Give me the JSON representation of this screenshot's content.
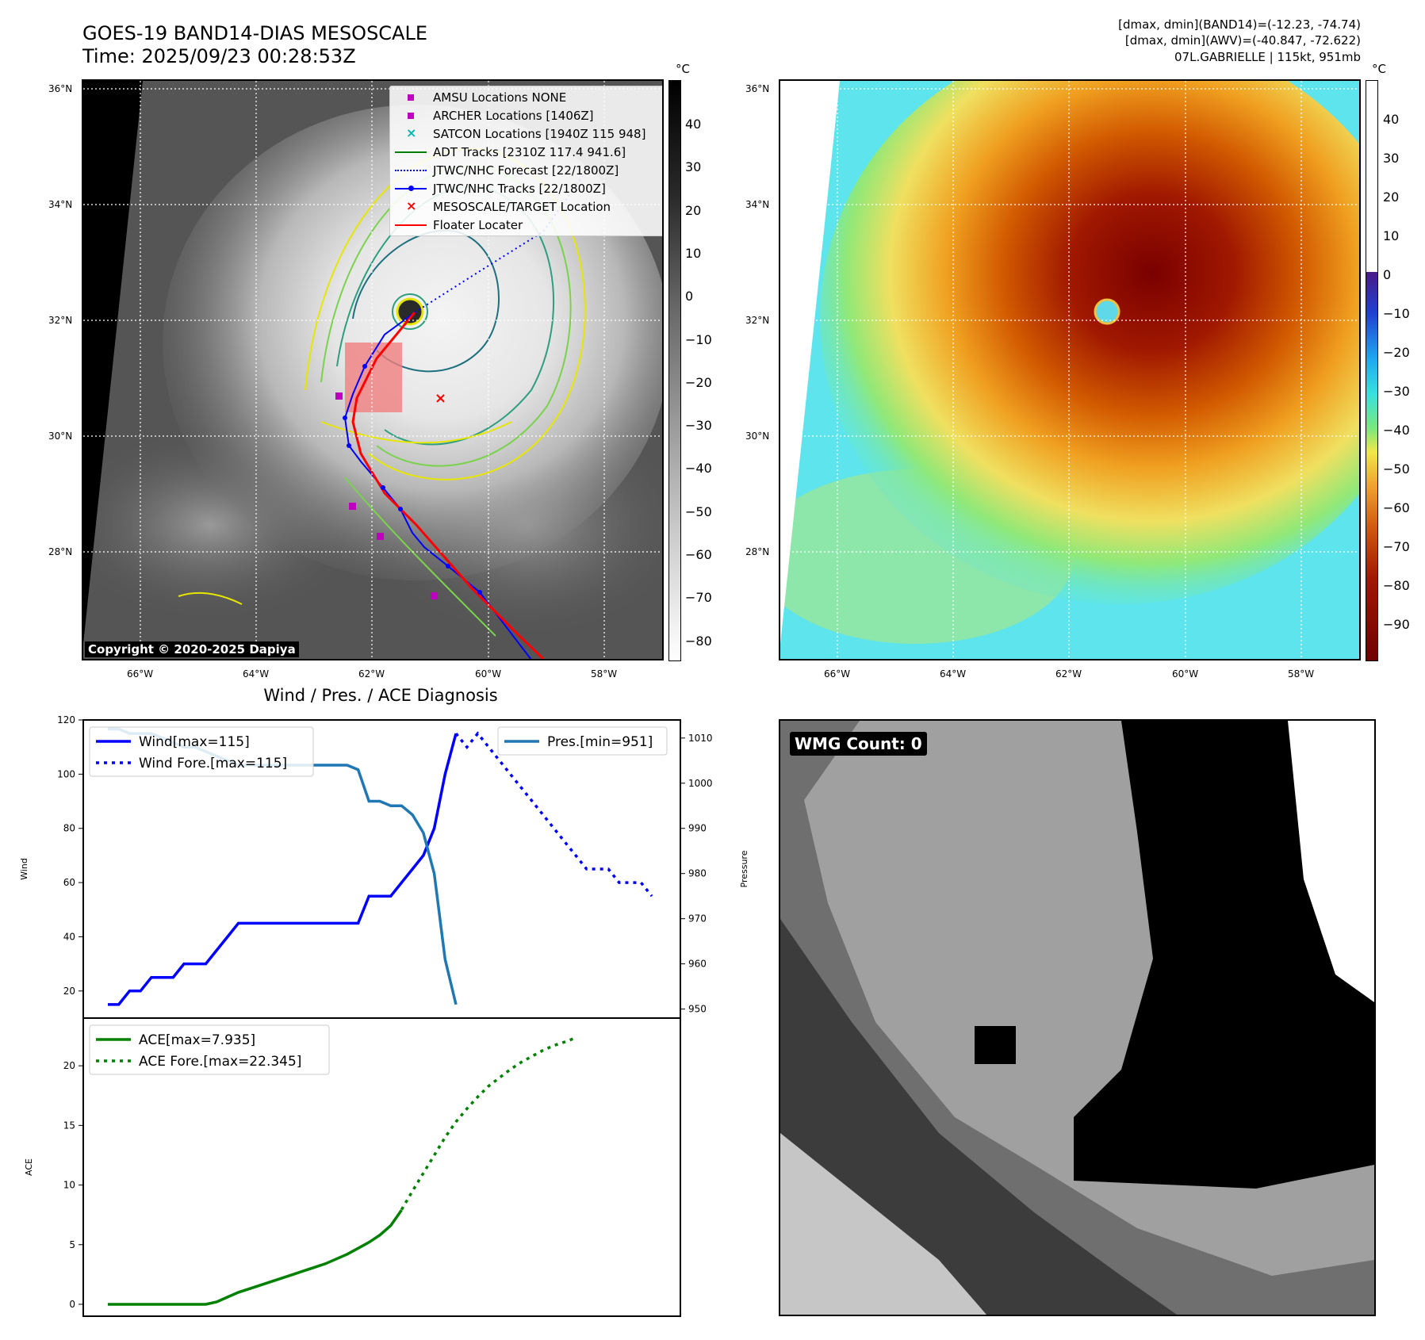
{
  "header": {
    "title_line1": "GOES-19 BAND14-DIAS MESOSCALE",
    "title_line2": "Time: 2025/09/23 00:28:53Z",
    "info_line1": "[dmax, dmin](BAND14)=(-12.23, -74.74)",
    "info_line2": "[dmax, dmin](AWV)=(-40.847, -72.622)",
    "info_line3": "07L.GABRIELLE | 115kt, 951mb"
  },
  "map": {
    "lat_labels": [
      "36°N",
      "34°N",
      "32°N",
      "30°N",
      "28°N"
    ],
    "lon_labels": [
      "66°W",
      "64°W",
      "62°W",
      "60°W",
      "58°W"
    ],
    "copyright": "Copyright © 2020-2025 Dapiya",
    "colorbar_unit": "°C",
    "ir_colorbar_ticks": [
      "40",
      "30",
      "20",
      "10",
      "0",
      "−10",
      "−20",
      "−30",
      "−40",
      "−50",
      "−60",
      "−70",
      "−80"
    ],
    "color_colorbar_ticks": [
      "40",
      "30",
      "20",
      "10",
      "0",
      "−10",
      "−20",
      "−30",
      "−40",
      "−50",
      "−60",
      "−70",
      "−80",
      "−90"
    ],
    "legend": [
      {
        "label": "AMSU Locations NONE",
        "color": "#c000c0",
        "kind": "square"
      },
      {
        "label": "ARCHER Locations [1406Z]",
        "color": "#c000c0",
        "kind": "square"
      },
      {
        "label": "SATCON Locations [1940Z 115 948]",
        "color": "#00b5b5",
        "kind": "cross"
      },
      {
        "label": "ADT Tracks [2310Z 117.4 941.6]",
        "color": "#008000",
        "kind": "line"
      },
      {
        "label": "JTWC/NHC Forecast [22/1800Z]",
        "color": "#0000ff",
        "kind": "dotted"
      },
      {
        "label": "JTWC/NHC Tracks [22/1800Z]",
        "color": "#0000ff",
        "kind": "linedot"
      },
      {
        "label": "MESOSCALE/TARGET Location",
        "color": "#ff0000",
        "kind": "x"
      },
      {
        "label": "Floater Locater",
        "color": "#ff0000",
        "kind": "line"
      }
    ]
  },
  "diagnosis": {
    "title": "Wind / Pres. / ACE Diagnosis",
    "wind_ylabel": "Wind",
    "pres_ylabel": "Pressure",
    "ace_ylabel": "ACE",
    "legend_wind": "Wind[max=115]",
    "legend_wind_fore": "Wind Fore.[max=115]",
    "legend_pres": "Pres.[min=951]",
    "legend_ace": "ACE[max=7.935]",
    "legend_ace_fore": "ACE Fore.[max=22.345]"
  },
  "wmg": {
    "label": "WMG Count: 0"
  },
  "chart_data": [
    {
      "type": "line",
      "title": "Wind / Pres. / ACE Diagnosis",
      "ylabel": "Wind",
      "ylim": [
        10,
        120
      ],
      "y_ticks": [
        20,
        40,
        60,
        80,
        100,
        120
      ],
      "x": [
        0,
        1,
        2,
        3,
        4,
        5,
        6,
        7,
        8,
        9,
        10,
        11,
        12,
        13,
        14,
        15,
        16,
        17,
        18,
        19,
        20,
        21,
        22,
        23,
        24,
        25,
        26,
        27,
        28,
        29,
        30,
        31,
        32,
        33,
        34,
        35,
        36,
        37,
        38,
        39,
        40,
        41,
        42,
        43,
        44,
        45,
        46,
        47,
        48,
        49,
        50
      ],
      "series": [
        {
          "name": "Wind[max=115]",
          "color": "#0000ff",
          "style": "solid",
          "values": [
            15,
            15,
            20,
            20,
            25,
            25,
            25,
            30,
            30,
            30,
            35,
            40,
            45,
            45,
            45,
            45,
            45,
            45,
            45,
            45,
            45,
            45,
            45,
            45,
            55,
            55,
            55,
            60,
            65,
            70,
            80,
            100,
            115,
            null,
            null,
            null,
            null,
            null,
            null,
            null,
            null,
            null,
            null,
            null,
            null,
            null,
            null,
            null,
            null,
            null,
            null
          ]
        },
        {
          "name": "Wind Fore.[max=115]",
          "color": "#0000ff",
          "style": "dotted",
          "values": [
            null,
            null,
            null,
            null,
            null,
            null,
            null,
            null,
            null,
            null,
            null,
            null,
            null,
            null,
            null,
            null,
            null,
            null,
            null,
            null,
            null,
            null,
            null,
            null,
            null,
            null,
            null,
            null,
            null,
            null,
            null,
            null,
            115,
            110,
            115,
            110,
            105,
            100,
            95,
            90,
            85,
            80,
            75,
            70,
            65,
            65,
            65,
            60,
            60,
            60,
            55
          ]
        }
      ]
    },
    {
      "type": "line",
      "ylabel": "Pressure",
      "ylim": [
        948,
        1014
      ],
      "y_ticks": [
        950,
        960,
        970,
        980,
        990,
        1000,
        1010
      ],
      "series": [
        {
          "name": "Pres.[min=951]",
          "color": "#1f77b4",
          "style": "solid",
          "values": [
            1012,
            1012,
            1011,
            1011,
            1011,
            1010,
            1009,
            1008,
            1008,
            1007,
            1006,
            1005,
            1004,
            1004,
            1004,
            1004,
            1004,
            1004,
            1004,
            1004,
            1004,
            1004,
            1004,
            1003,
            996,
            996,
            995,
            995,
            993,
            989,
            980,
            961,
            951
          ]
        }
      ]
    },
    {
      "type": "line",
      "ylabel": "ACE",
      "ylim": [
        -1,
        24
      ],
      "y_ticks": [
        0,
        5,
        10,
        15,
        20
      ],
      "series": [
        {
          "name": "ACE[max=7.935]",
          "color": "#008000",
          "style": "solid",
          "values": [
            0,
            0,
            0,
            0,
            0,
            0,
            0,
            0,
            0,
            0,
            0.2,
            0.6,
            1.0,
            1.3,
            1.6,
            1.9,
            2.2,
            2.5,
            2.8,
            3.1,
            3.4,
            3.8,
            4.2,
            4.7,
            5.2,
            5.8,
            6.6,
            7.9
          ]
        },
        {
          "name": "ACE Fore.[max=22.345]",
          "color": "#008000",
          "style": "dotted",
          "values": [
            7.935,
            9.5,
            11.0,
            12.5,
            14.0,
            15.3,
            16.4,
            17.4,
            18.3,
            19.0,
            19.7,
            20.3,
            20.8,
            21.3,
            21.7,
            22.0,
            22.345
          ]
        }
      ]
    }
  ]
}
